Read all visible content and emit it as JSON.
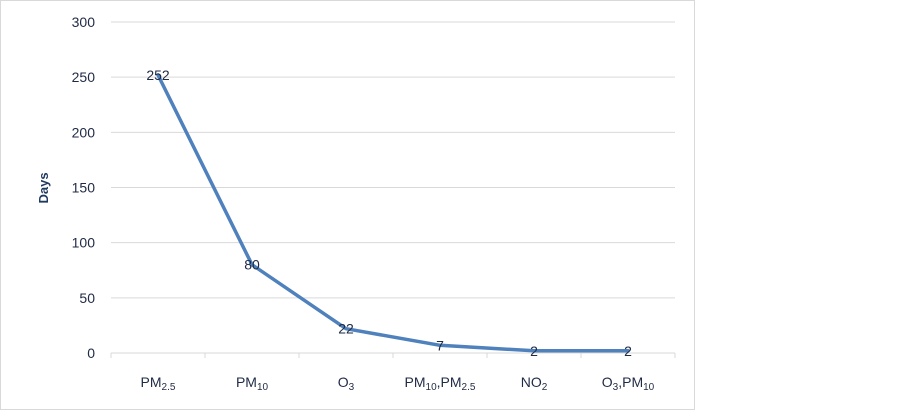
{
  "chart_data": {
    "type": "line",
    "title": "",
    "xlabel": "",
    "ylabel": "Days",
    "ylim": [
      0,
      300
    ],
    "yticks": [
      0,
      50,
      100,
      150,
      200,
      250,
      300
    ],
    "grid": true,
    "legend": "none",
    "categories": [
      {
        "base": "PM",
        "sub": "2.5"
      },
      {
        "base": "PM",
        "sub": "10"
      },
      {
        "base": "O",
        "sub": "3"
      },
      {
        "parts": [
          {
            "base": "PM",
            "sub": "10"
          },
          {
            "base": ",PM",
            "sub": "2.5"
          }
        ]
      },
      {
        "base": "NO",
        "sub": "2"
      },
      {
        "parts": [
          {
            "base": "O",
            "sub": "3"
          },
          {
            "base": ",PM",
            "sub": "10"
          }
        ]
      }
    ],
    "series": [
      {
        "values": [
          252,
          80,
          22,
          7,
          2,
          2
        ],
        "color": "#4f81bd"
      }
    ],
    "data_labels": [
      "252",
      "80",
      "22",
      "7",
      "2",
      "2"
    ]
  }
}
